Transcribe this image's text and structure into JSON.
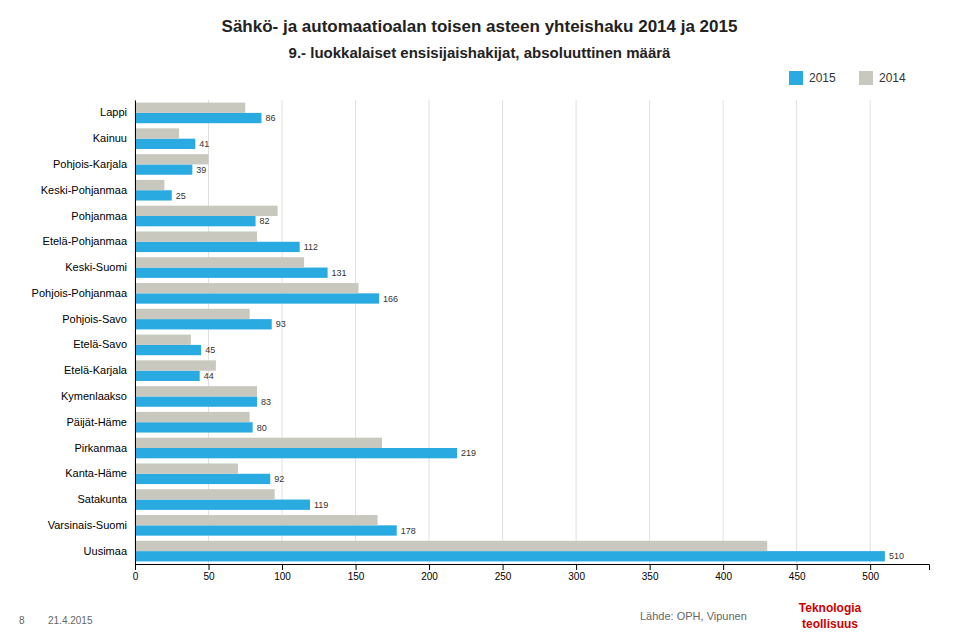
{
  "chart_data": {
    "type": "bar",
    "orientation": "horizontal",
    "title": "Sähkö- ja automaatioalan toisen asteen yhteishaku 2014 ja 2015",
    "subtitle": "9.- luokkalaiset ensisijaishakijat, absoluuttinen määrä",
    "categories": [
      "Lappi",
      "Kainuu",
      "Pohjois-Karjala",
      "Keski-Pohjanmaa",
      "Pohjanmaa",
      "Etelä-Pohjanmaa",
      "Keski-Suomi",
      "Pohjois-Pohjanmaa",
      "Pohjois-Savo",
      "Etelä-Savo",
      "Etelä-Karjala",
      "Kymenlaakso",
      "Päijät-Häme",
      "Pirkanmaa",
      "Kanta-Häme",
      "Satakunta",
      "Varsinais-Suomi",
      "Uusimaa"
    ],
    "series": [
      {
        "name": "2015",
        "color": "#29ABE2",
        "data_labels": true,
        "values": [
          86,
          41,
          39,
          25,
          82,
          112,
          131,
          166,
          93,
          45,
          44,
          83,
          80,
          219,
          92,
          119,
          178,
          510
        ]
      },
      {
        "name": "2014",
        "color": "#C8C8BE",
        "values": [
          75,
          30,
          50,
          20,
          97,
          83,
          115,
          152,
          78,
          38,
          55,
          83,
          78,
          168,
          70,
          95,
          165,
          430
        ]
      }
    ],
    "xlim": [
      0,
      540
    ],
    "xticks": [
      0,
      50,
      100,
      150,
      200,
      250,
      300,
      350,
      400,
      450,
      500
    ],
    "grid": true,
    "legend": "upper right",
    "annotations": [
      {
        "text": "8"
      },
      {
        "text": "21.4.2015"
      },
      {
        "text": "Lähde: OPH, Vipunen"
      },
      {
        "text": "Teknologia",
        "color": "#CC0000"
      },
      {
        "text": "teollisuus",
        "color": "#CC0000"
      }
    ]
  }
}
